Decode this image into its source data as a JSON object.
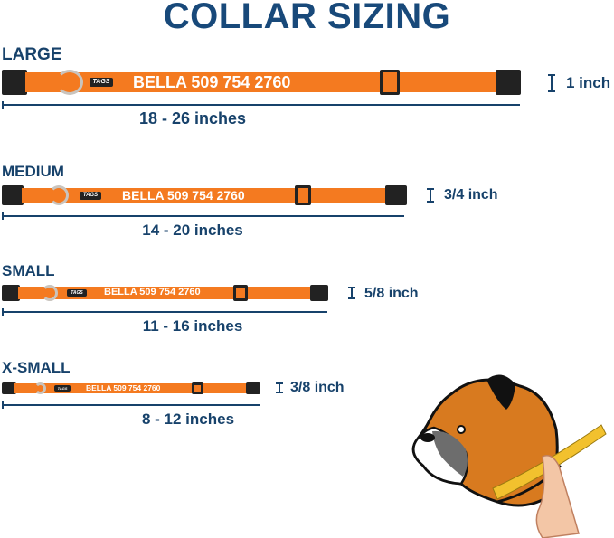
{
  "title": "COLLAR SIZING",
  "name_text": "BELLA 509 754 2760",
  "tag_text": "TAGS",
  "colors": {
    "title": "#18497a",
    "collar": "#f47a20",
    "text": "#17426b",
    "buckle": "#222222"
  },
  "sizes": [
    {
      "label": "LARGE",
      "range": "18 - 26 inches",
      "width": "1 inch"
    },
    {
      "label": "MEDIUM",
      "range": "14 - 20 inches",
      "width": "3/4 inch"
    },
    {
      "label": "SMALL",
      "range": "11 - 16 inches",
      "width": "5/8 inch"
    },
    {
      "label": "X-SMALL",
      "range": "8 - 12 inches",
      "width": "3/8 inch"
    }
  ],
  "illustration": "boxer-dog-with-measuring-tape"
}
